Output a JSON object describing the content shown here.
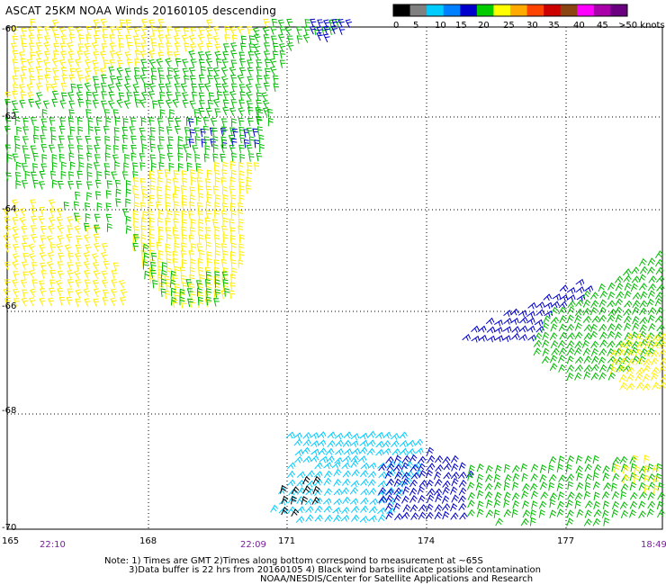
{
  "title": "ASCAT 25KM NOAA Winds 20160105 descending",
  "legend": {
    "labels": [
      "0",
      "5",
      "10",
      "15",
      "20",
      "25",
      "30",
      "35",
      "40",
      "45",
      ">50 knots"
    ],
    "colors": [
      "#000000",
      "#808080",
      "#00ccff",
      "#0080ff",
      "#0000cc",
      "#00cc00",
      "#ffff00",
      "#ffaa00",
      "#ff4400",
      "#cc0000",
      "#8b4513",
      "#ff00ff",
      "#aa00aa",
      "#6a0080"
    ]
  },
  "axes": {
    "lat_labels": [
      "-60",
      "-62",
      "-64",
      "-66",
      "-68",
      "-70"
    ],
    "lon_labels": [
      "165",
      "168",
      "171",
      "174",
      "177"
    ],
    "times": [
      "22:10",
      "22:09",
      "18:49"
    ]
  },
  "notes": [
    "Note: 1) Times are GMT 2)Times along bottom correspond to measurement at ~65S",
    "3)Data buffer is 22 hrs from 20160105 4) Black wind barbs indicate possible contamination",
    "NOAA/NESDIS/Center for Satellite Applications and Research"
  ],
  "wind_regions": [
    {
      "name": "north-yellow",
      "color": "#ffee00"
    },
    {
      "name": "north-green",
      "color": "#00bb00"
    },
    {
      "name": "north-blue",
      "color": "#0000cc"
    },
    {
      "name": "east-green",
      "color": "#00bb00"
    },
    {
      "name": "east-blue",
      "color": "#0000cc"
    },
    {
      "name": "east-yellow",
      "color": "#ffee00"
    },
    {
      "name": "south-cyan",
      "color": "#00ccff"
    },
    {
      "name": "south-blue",
      "color": "#0000cc"
    },
    {
      "name": "south-green",
      "color": "#00bb00"
    },
    {
      "name": "south-black",
      "color": "#000000"
    }
  ]
}
